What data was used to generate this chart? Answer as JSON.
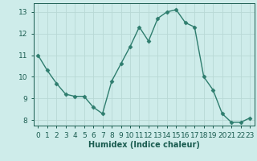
{
  "x": [
    0,
    1,
    2,
    3,
    4,
    5,
    6,
    7,
    8,
    9,
    10,
    11,
    12,
    13,
    14,
    15,
    16,
    17,
    18,
    19,
    20,
    21,
    22,
    23
  ],
  "y": [
    11.0,
    10.3,
    9.7,
    9.2,
    9.1,
    9.1,
    8.6,
    8.3,
    9.8,
    10.6,
    11.4,
    12.3,
    11.65,
    12.7,
    13.0,
    13.1,
    12.5,
    12.3,
    10.0,
    9.4,
    8.3,
    7.9,
    7.9,
    8.1
  ],
  "line_color": "#2e7d6e",
  "marker": "D",
  "markersize": 2.5,
  "linewidth": 1.0,
  "bg_color": "#ceecea",
  "grid_color": "#b8d8d5",
  "xlabel": "Humidex (Indice chaleur)",
  "xlabel_fontsize": 7,
  "tick_fontsize": 6.5,
  "xlim": [
    -0.5,
    23.5
  ],
  "ylim": [
    7.75,
    13.4
  ],
  "yticks": [
    8,
    9,
    10,
    11,
    12,
    13
  ],
  "xticks": [
    0,
    1,
    2,
    3,
    4,
    5,
    6,
    7,
    8,
    9,
    10,
    11,
    12,
    13,
    14,
    15,
    16,
    17,
    18,
    19,
    20,
    21,
    22,
    23
  ],
  "text_color": "#1a5c50"
}
